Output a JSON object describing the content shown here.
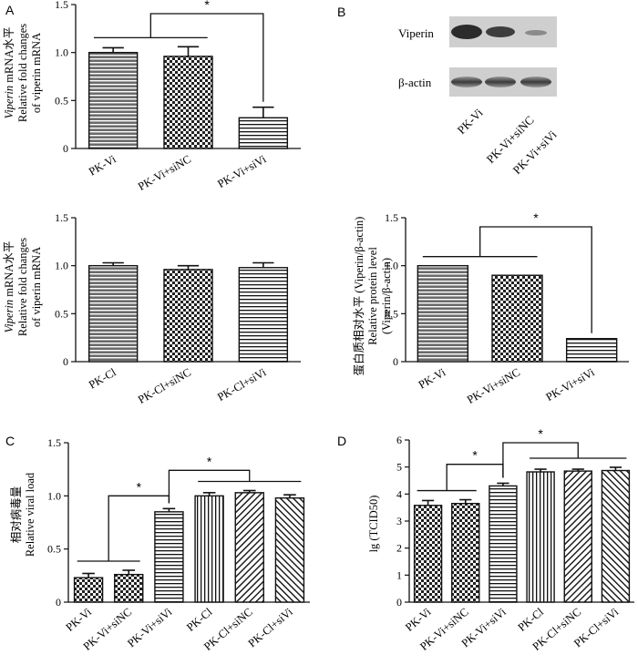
{
  "panel_labels": {
    "A": "A",
    "B": "B",
    "C": "C",
    "D": "D"
  },
  "blot": {
    "rows": [
      "Viperin",
      "β-actin"
    ],
    "lanes": [
      "PK-Vi",
      "PK-Vi+siNC",
      "PK-Vi+siVi"
    ]
  },
  "chart_data": [
    {
      "id": "A-top",
      "type": "bar",
      "categories": [
        "PK-Vi",
        "PK-Vi+siNC",
        "PK-Vi+siVi"
      ],
      "values": [
        1.0,
        0.96,
        0.32
      ],
      "errors": [
        0.05,
        0.1,
        0.11
      ],
      "patterns": [
        "hlines-gray",
        "checker",
        "hlines"
      ],
      "ylabel_italic": "Viperin",
      "ylabel": [
        " mRNA水平",
        "Relative fold changes",
        "of viperin mRNA"
      ],
      "ylim": [
        0,
        1.5
      ],
      "yticks": [
        "0",
        "0.5",
        "1.0",
        "1.5"
      ],
      "significance": [
        {
          "label": "*",
          "group": [
            0,
            1
          ],
          "vs": 2
        }
      ]
    },
    {
      "id": "A-bottom",
      "type": "bar",
      "categories": [
        "PK-Cl",
        "PK-Cl+siNC",
        "PK-Cl+siVi"
      ],
      "values": [
        1.0,
        0.96,
        0.98
      ],
      "errors": [
        0.03,
        0.04,
        0.05
      ],
      "patterns": [
        "hlines-gray",
        "checker",
        "hlines"
      ],
      "ylabel_italic": "Viperin",
      "ylabel": [
        " mRNA水平",
        "Relative fold changes",
        "of viperin mRNA"
      ],
      "ylim": [
        0,
        1.5
      ],
      "yticks": [
        "0",
        "0.5",
        "1.0",
        "1.5"
      ],
      "significance": []
    },
    {
      "id": "B-quant",
      "type": "bar",
      "categories": [
        "PK-Vi",
        "PK-Vi+siNC",
        "PK-Vi+siVi"
      ],
      "values": [
        1.0,
        0.9,
        0.24
      ],
      "errors": [
        0,
        0,
        0
      ],
      "patterns": [
        "hlines-gray",
        "checker",
        "hlines"
      ],
      "ylabel_italic": "",
      "ylabel": [
        "蛋白质相对水平 (Viperin/β-actin)",
        "Relative protein level",
        "(Viperin/β-actin)"
      ],
      "ylim": [
        0,
        1.5
      ],
      "yticks": [
        "0",
        "0.5",
        "1.0",
        "1.5"
      ],
      "significance": [
        {
          "label": "*",
          "group": [
            0,
            1
          ],
          "vs": 2
        }
      ]
    },
    {
      "id": "C",
      "type": "bar",
      "categories": [
        "PK-Vi",
        "PK-Vi+siNC",
        "PK-Vi+siVi",
        "PK-Cl",
        "PK-Cl+siNC",
        "PK-Cl+siVi"
      ],
      "values": [
        0.23,
        0.26,
        0.85,
        1.0,
        1.03,
        0.98
      ],
      "errors": [
        0.04,
        0.04,
        0.03,
        0.03,
        0.02,
        0.03
      ],
      "patterns": [
        "checker",
        "checker",
        "hlines",
        "vlines",
        "diag",
        "diag2"
      ],
      "ylabel_italic": "",
      "ylabel": [
        "相对病毒量",
        "Relative viral load"
      ],
      "ylim": [
        0,
        1.5
      ],
      "yticks": [
        "0",
        "0.5",
        "1.0",
        "1.5"
      ],
      "significance": [
        {
          "label": "*",
          "group": [
            0,
            1
          ],
          "vs": 2
        },
        {
          "label": "*",
          "group": [
            3,
            4,
            5
          ],
          "vs": 2
        }
      ]
    },
    {
      "id": "D",
      "type": "bar",
      "categories": [
        "PK-Vi",
        "PK-Vi+siNC",
        "PK-Vi+siVi",
        "PK-Cl",
        "PK-Cl+siNC",
        "PK-Cl+siVi"
      ],
      "values": [
        3.58,
        3.65,
        4.3,
        4.82,
        4.85,
        4.87
      ],
      "errors": [
        0.18,
        0.14,
        0.1,
        0.1,
        0.07,
        0.12
      ],
      "patterns": [
        "checker",
        "checker",
        "hlines",
        "vlines",
        "diag",
        "diag2"
      ],
      "ylabel_italic": "",
      "ylabel": [
        "lg (TCID50)"
      ],
      "ylim": [
        0,
        6
      ],
      "yticks": [
        "0",
        "1",
        "2",
        "3",
        "4",
        "5",
        "6"
      ],
      "significance": [
        {
          "label": "*",
          "group": [
            0,
            1
          ],
          "vs": 2
        },
        {
          "label": "*",
          "group": [
            3,
            4,
            5
          ],
          "vs": 2
        }
      ]
    }
  ]
}
